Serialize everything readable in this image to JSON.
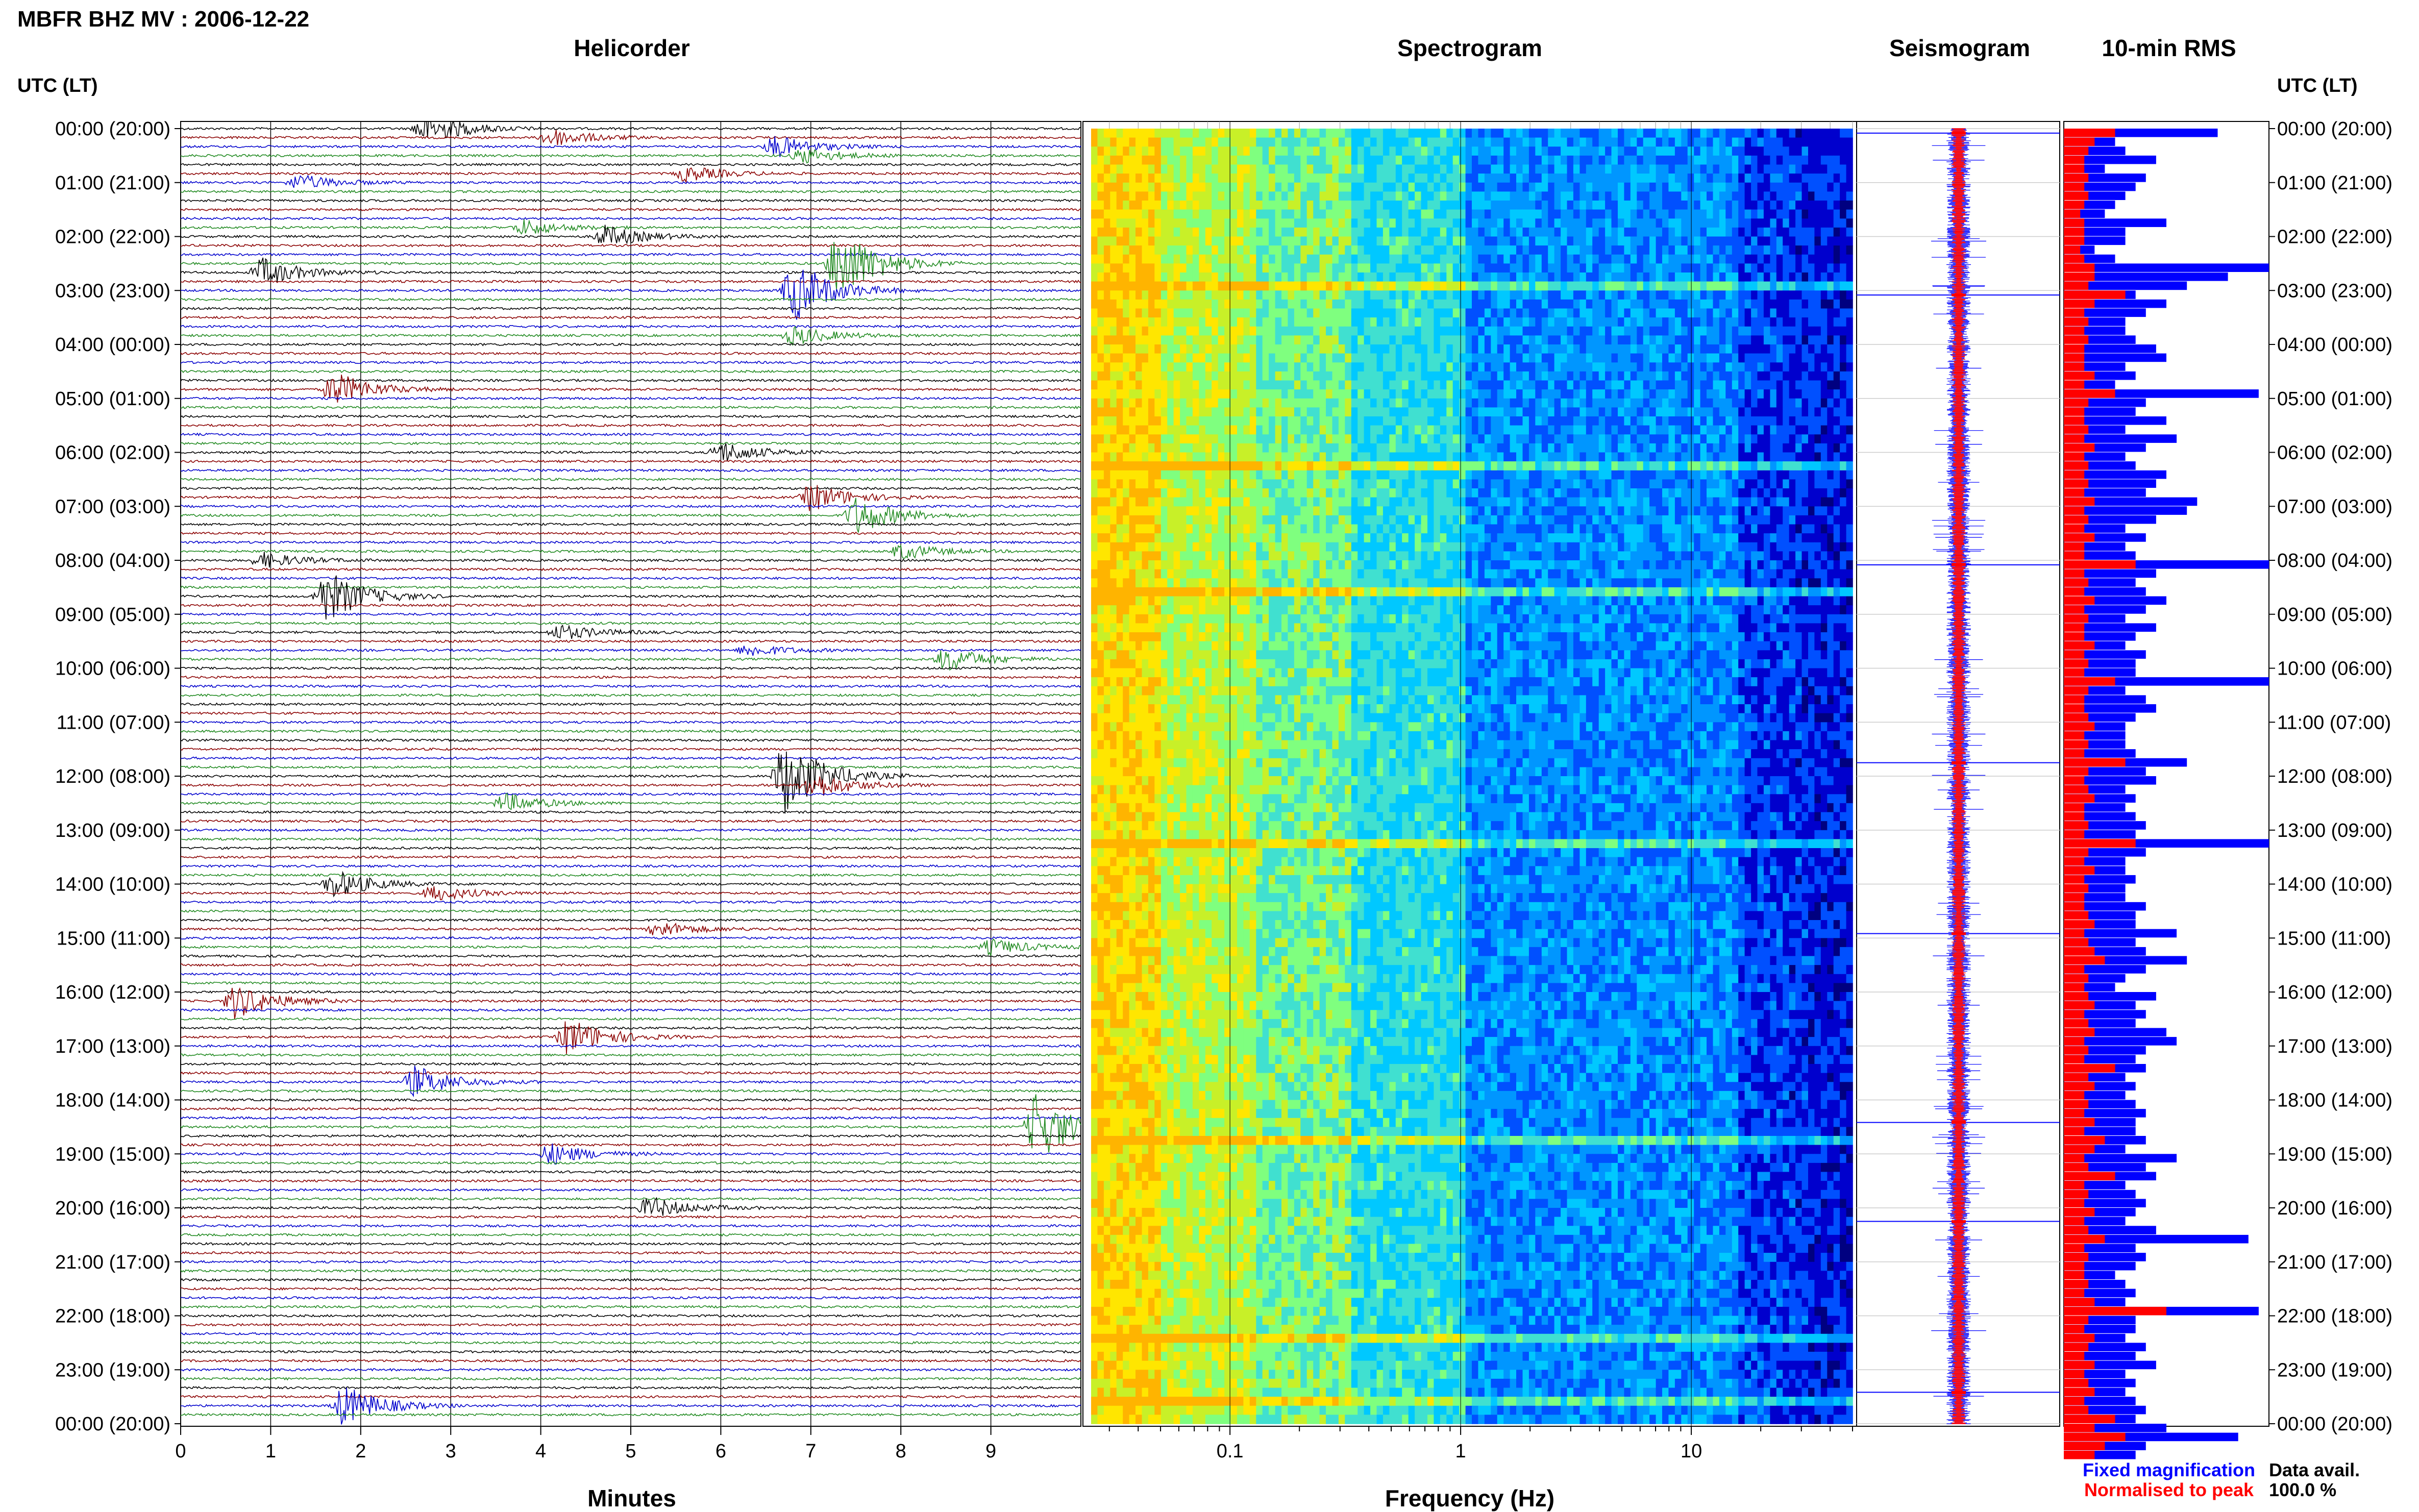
{
  "page": {
    "title": "MBFR BHZ MV : 2006-12-22",
    "left_axis_label": "UTC (LT)",
    "right_axis_label": "UTC (LT)",
    "data_avail_label": "Data avail.",
    "data_avail_value": "100.0 %"
  },
  "panels": {
    "helicorder": "Helicorder",
    "spectrogram": "Spectrogram",
    "seismogram": "Seismogram",
    "rms": "10-min RMS"
  },
  "legend": {
    "fixed": {
      "label": "Fixed magnification",
      "color": "#0000ff"
    },
    "normalised": {
      "label": "Normalised to peak",
      "color": "#ff0000"
    }
  },
  "time_labels": [
    "00:00 (20:00)",
    "01:00 (21:00)",
    "02:00 (22:00)",
    "03:00 (23:00)",
    "04:00 (00:00)",
    "05:00 (01:00)",
    "06:00 (02:00)",
    "07:00 (03:00)",
    "08:00 (04:00)",
    "09:00 (05:00)",
    "10:00 (06:00)",
    "11:00 (07:00)",
    "12:00 (08:00)",
    "13:00 (09:00)",
    "14:00 (10:00)",
    "15:00 (11:00)",
    "16:00 (12:00)",
    "17:00 (13:00)",
    "18:00 (14:00)",
    "19:00 (15:00)",
    "20:00 (16:00)",
    "21:00 (17:00)",
    "22:00 (18:00)",
    "23:00 (19:00)",
    "00:00 (20:00)"
  ],
  "chart_data": [
    {
      "type": "helicorder",
      "title": "Helicorder",
      "xlabel": "Minutes",
      "x_ticks": [
        "0",
        "1",
        "2",
        "3",
        "4",
        "5",
        "6",
        "7",
        "8",
        "9"
      ],
      "xlim": [
        0,
        10
      ],
      "trace_colors": [
        "#000000",
        "#8b0000",
        "#0000cd",
        "#228b22"
      ],
      "events": [
        {
          "row": 0,
          "minute": 2.7,
          "amp": 2.2
        },
        {
          "row": 1,
          "minute": 4.1,
          "amp": 1.2
        },
        {
          "row": 2,
          "minute": 6.6,
          "amp": 1.4
        },
        {
          "row": 3,
          "minute": 6.9,
          "amp": 1.0
        },
        {
          "row": 5,
          "minute": 5.6,
          "amp": 1.0
        },
        {
          "row": 6,
          "minute": 1.3,
          "amp": 1.0
        },
        {
          "row": 11,
          "minute": 3.8,
          "amp": 1.0
        },
        {
          "row": 12,
          "minute": 4.7,
          "amp": 1.4
        },
        {
          "row": 15,
          "minute": 7.3,
          "amp": 5.0
        },
        {
          "row": 16,
          "minute": 0.9,
          "amp": 1.8
        },
        {
          "row": 18,
          "minute": 6.8,
          "amp": 4.0
        },
        {
          "row": 23,
          "minute": 6.8,
          "amp": 1.2
        },
        {
          "row": 29,
          "minute": 1.7,
          "amp": 2.2
        },
        {
          "row": 36,
          "minute": 6.0,
          "amp": 1.4
        },
        {
          "row": 41,
          "minute": 7.0,
          "amp": 1.8
        },
        {
          "row": 43,
          "minute": 7.5,
          "amp": 2.4
        },
        {
          "row": 47,
          "minute": 8.0,
          "amp": 1.0
        },
        {
          "row": 48,
          "minute": 0.9,
          "amp": 1.0
        },
        {
          "row": 52,
          "minute": 1.6,
          "amp": 3.4
        },
        {
          "row": 56,
          "minute": 4.2,
          "amp": 1.0
        },
        {
          "row": 58,
          "minute": 6.3,
          "amp": 0.8
        },
        {
          "row": 59,
          "minute": 8.5,
          "amp": 1.6
        },
        {
          "row": 72,
          "minute": 6.7,
          "amp": 5.0
        },
        {
          "row": 73,
          "minute": 7.0,
          "amp": 1.8
        },
        {
          "row": 75,
          "minute": 3.6,
          "amp": 1.2
        },
        {
          "row": 84,
          "minute": 1.7,
          "amp": 1.8
        },
        {
          "row": 85,
          "minute": 2.8,
          "amp": 1.0
        },
        {
          "row": 89,
          "minute": 5.3,
          "amp": 1.0
        },
        {
          "row": 91,
          "minute": 9.0,
          "amp": 1.0
        },
        {
          "row": 97,
          "minute": 0.6,
          "amp": 2.2
        },
        {
          "row": 101,
          "minute": 4.3,
          "amp": 2.4
        },
        {
          "row": 106,
          "minute": 2.6,
          "amp": 2.0
        },
        {
          "row": 111,
          "minute": 9.5,
          "amp": 4.5
        },
        {
          "row": 114,
          "minute": 4.1,
          "amp": 1.4
        },
        {
          "row": 120,
          "minute": 5.2,
          "amp": 1.4
        },
        {
          "row": 142,
          "minute": 1.8,
          "amp": 2.6
        }
      ]
    },
    {
      "type": "heatmap",
      "title": "Spectrogram",
      "xlabel": "Frequency (Hz)",
      "x_scale": "log",
      "xlim": [
        0.025,
        50
      ],
      "x_ticks": [
        {
          "value": 0.1,
          "label": "0.1"
        },
        {
          "value": 1,
          "label": "1"
        },
        {
          "value": 10,
          "label": "10"
        }
      ],
      "bright_rows": [
        17.5,
        37.5,
        51,
        79,
        112,
        134,
        141
      ],
      "colors": [
        "#000080",
        "#0000cd",
        "#0050ff",
        "#0096ff",
        "#00c8ff",
        "#40e0d0",
        "#7fff7f",
        "#c8f028",
        "#ffe600",
        "#ffb400"
      ]
    },
    {
      "type": "seismogram",
      "title": "Seismogram",
      "spike_rows": [
        0,
        18,
        48,
        70,
        89,
        110,
        121,
        140
      ]
    },
    {
      "type": "bar",
      "title": "10-min RMS",
      "orientation": "horizontal",
      "series": [
        {
          "name": "Fixed magnification",
          "color": "#0000ff",
          "values": [
            0.75,
            0.25,
            0.3,
            0.45,
            0.2,
            0.4,
            0.35,
            0.3,
            0.25,
            0.2,
            0.5,
            0.3,
            0.3,
            0.15,
            0.25,
            1.0,
            0.8,
            0.6,
            0.35,
            0.5,
            0.4,
            0.3,
            0.3,
            0.35,
            0.45,
            0.5,
            0.3,
            0.35,
            0.25,
            0.95,
            0.4,
            0.35,
            0.5,
            0.3,
            0.55,
            0.4,
            0.3,
            0.35,
            0.5,
            0.45,
            0.4,
            0.65,
            0.6,
            0.45,
            0.3,
            0.4,
            0.3,
            0.35,
            1.0,
            0.45,
            0.35,
            0.4,
            0.5,
            0.4,
            0.3,
            0.45,
            0.35,
            0.3,
            0.4,
            0.35,
            0.35,
            1.0,
            0.3,
            0.4,
            0.45,
            0.35,
            0.3,
            0.3,
            0.3,
            0.35,
            0.6,
            0.4,
            0.45,
            0.3,
            0.35,
            0.3,
            0.35,
            0.4,
            0.35,
            1.0,
            0.4,
            0.3,
            0.3,
            0.35,
            0.3,
            0.3,
            0.4,
            0.35,
            0.35,
            0.55,
            0.35,
            0.4,
            0.6,
            0.4,
            0.3,
            0.25,
            0.45,
            0.35,
            0.4,
            0.35,
            0.5,
            0.55,
            0.4,
            0.35,
            0.4,
            0.3,
            0.35,
            0.3,
            0.35,
            0.4,
            0.35,
            0.35,
            0.4,
            0.3,
            0.55,
            0.4,
            0.45,
            0.3,
            0.35,
            0.4,
            0.35,
            0.3,
            0.45,
            0.9,
            0.35,
            0.4,
            0.35,
            0.25,
            0.3,
            0.35,
            0.3,
            0.95,
            0.35,
            0.35,
            0.3,
            0.4,
            0.35,
            0.45,
            0.3,
            0.35,
            0.3,
            0.35,
            0.4,
            0.35,
            0.5,
            0.85,
            0.4,
            0.35
          ]
        },
        {
          "name": "Normalised to peak",
          "color": "#ff0000",
          "values": [
            0.25,
            0.15,
            0.12,
            0.1,
            0.1,
            0.12,
            0.1,
            0.12,
            0.1,
            0.08,
            0.1,
            0.1,
            0.1,
            0.08,
            0.1,
            0.15,
            0.15,
            0.12,
            0.3,
            0.15,
            0.1,
            0.12,
            0.1,
            0.12,
            0.1,
            0.1,
            0.1,
            0.15,
            0.1,
            0.25,
            0.12,
            0.1,
            0.1,
            0.12,
            0.1,
            0.15,
            0.1,
            0.12,
            0.1,
            0.12,
            0.1,
            0.15,
            0.1,
            0.12,
            0.1,
            0.15,
            0.1,
            0.1,
            0.35,
            0.1,
            0.12,
            0.1,
            0.15,
            0.1,
            0.12,
            0.1,
            0.1,
            0.15,
            0.1,
            0.12,
            0.1,
            0.25,
            0.12,
            0.1,
            0.1,
            0.12,
            0.15,
            0.1,
            0.12,
            0.1,
            0.3,
            0.12,
            0.1,
            0.12,
            0.15,
            0.1,
            0.1,
            0.12,
            0.1,
            0.35,
            0.12,
            0.1,
            0.15,
            0.1,
            0.12,
            0.1,
            0.1,
            0.12,
            0.15,
            0.1,
            0.12,
            0.15,
            0.2,
            0.1,
            0.12,
            0.1,
            0.12,
            0.15,
            0.1,
            0.12,
            0.15,
            0.1,
            0.12,
            0.1,
            0.25,
            0.12,
            0.15,
            0.1,
            0.12,
            0.1,
            0.15,
            0.1,
            0.2,
            0.15,
            0.1,
            0.12,
            0.25,
            0.1,
            0.12,
            0.1,
            0.15,
            0.1,
            0.12,
            0.2,
            0.1,
            0.12,
            0.1,
            0.1,
            0.12,
            0.1,
            0.15,
            0.5,
            0.12,
            0.1,
            0.15,
            0.12,
            0.1,
            0.15,
            0.1,
            0.12,
            0.15,
            0.1,
            0.12,
            0.25,
            0.15,
            0.3,
            0.2,
            0.15
          ]
        }
      ]
    }
  ]
}
